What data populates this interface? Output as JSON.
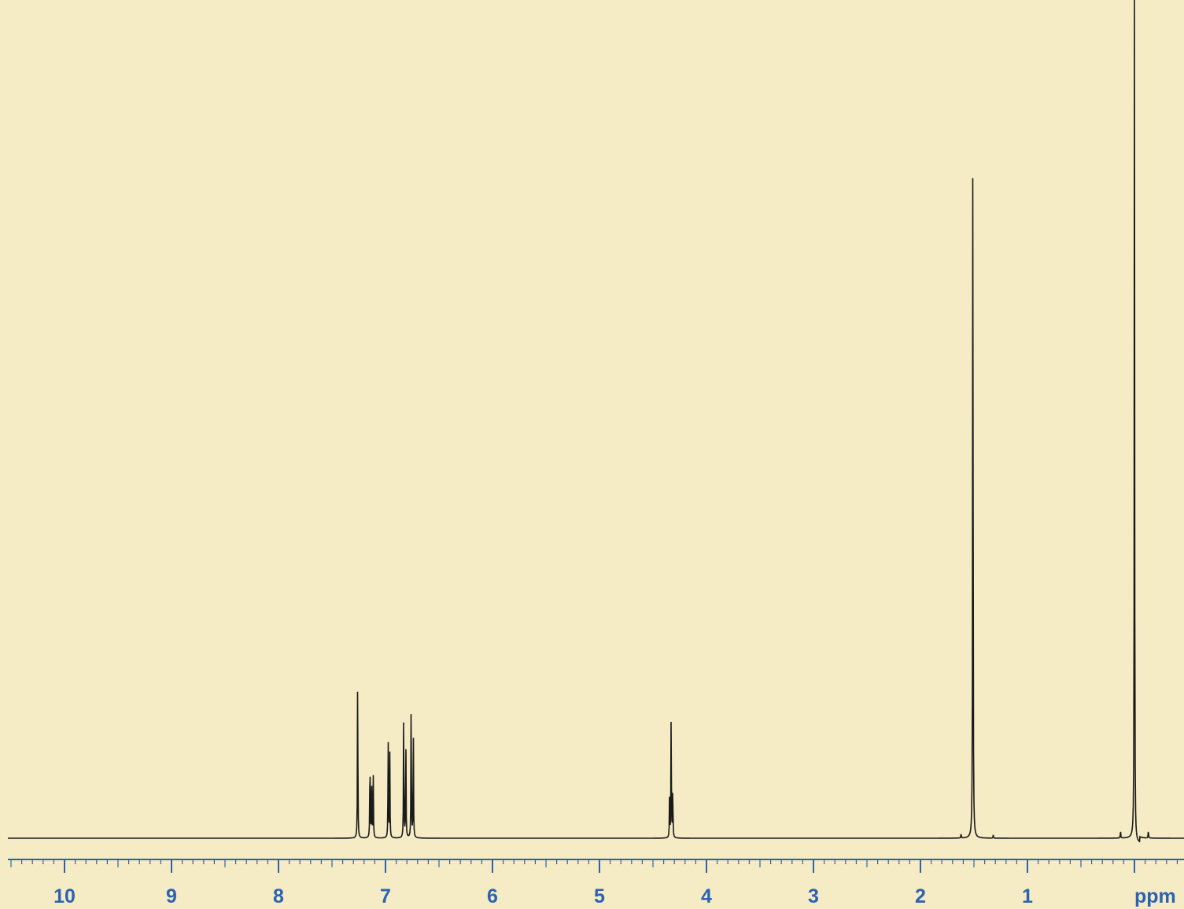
{
  "chart_data": {
    "type": "line",
    "xlabel": "ppm",
    "x_reversed": true,
    "xlim": [
      10.5,
      -0.45
    ],
    "ylim": [
      0,
      100
    ],
    "grid": false,
    "x_ticks": [
      "10",
      "9",
      "8",
      "7",
      "6",
      "5",
      "4",
      "3",
      "2",
      "1"
    ],
    "x_tick_values": [
      10,
      9,
      8,
      7,
      6,
      5,
      4,
      3,
      2,
      1
    ],
    "peaks": [
      {
        "ppm": 7.26,
        "height": 21.5
      },
      {
        "ppm": 7.145,
        "height": 11.0
      },
      {
        "ppm": 7.13,
        "height": 8.0
      },
      {
        "ppm": 7.115,
        "height": 9.0
      },
      {
        "ppm": 6.975,
        "height": 12.6
      },
      {
        "ppm": 6.96,
        "height": 10.6
      },
      {
        "ppm": 6.83,
        "height": 16.0
      },
      {
        "ppm": 6.81,
        "height": 13.5
      },
      {
        "ppm": 6.76,
        "height": 18.0
      },
      {
        "ppm": 6.74,
        "height": 14.5
      },
      {
        "ppm": 4.33,
        "height": 16.0
      },
      {
        "ppm": 4.315,
        "height": 6.5
      },
      {
        "ppm": 4.345,
        "height": 5.0
      },
      {
        "ppm": 1.51,
        "height": 97.0
      },
      {
        "ppm": 1.62,
        "height": 0.6
      },
      {
        "ppm": 1.32,
        "height": 0.4
      },
      {
        "ppm": 0.0,
        "height": 102.0
      },
      {
        "ppm": 0.13,
        "height": 1.0
      },
      {
        "ppm": -0.13,
        "height": 1.0
      }
    ]
  },
  "colors": {
    "background": "#f5ebc4",
    "axis": "#2b63b2",
    "trace": "#1a1a1a"
  }
}
